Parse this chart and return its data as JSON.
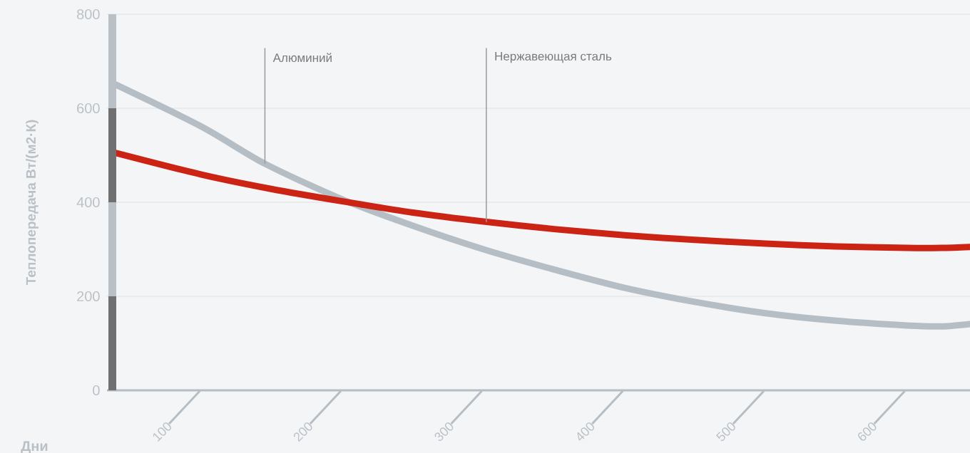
{
  "chart_data": {
    "type": "line",
    "xlabel": "Дни",
    "ylabel": "Теплопередача Вт/(м2·К)",
    "xlim": [
      61,
      673
    ],
    "ylim": [
      0,
      800
    ],
    "xticks": [
      100,
      200,
      300,
      400,
      500,
      600
    ],
    "yticks": [
      0,
      200,
      400,
      600,
      800
    ],
    "grid": "y",
    "marker": "none",
    "line_style": "solid",
    "series": [
      {
        "color": "#b6bec5",
        "x": [
          66,
          128,
          173,
          228,
          278,
          328,
          378,
          428,
          478,
          528,
          578,
          628,
          653,
          673
        ],
        "values": [
          652,
          561,
          482,
          406,
          350,
          300,
          257,
          218,
          188,
          164,
          148,
          138,
          136,
          141
        ]
      },
      {
        "color": "#cc2414",
        "x": [
          66,
          128,
          178,
          228,
          278,
          328,
          378,
          428,
          478,
          528,
          578,
          628,
          653,
          673
        ],
        "values": [
          506,
          459,
          428,
          402,
          378,
          359,
          343,
          330,
          320,
          312,
          306,
          303,
          303,
          305
        ]
      }
    ],
    "annotations": [
      {
        "text": "Алюминий",
        "x": 173,
        "y": 482
      },
      {
        "text": "Нержавеющая сталь",
        "x": 330,
        "y": 358
      }
    ]
  }
}
